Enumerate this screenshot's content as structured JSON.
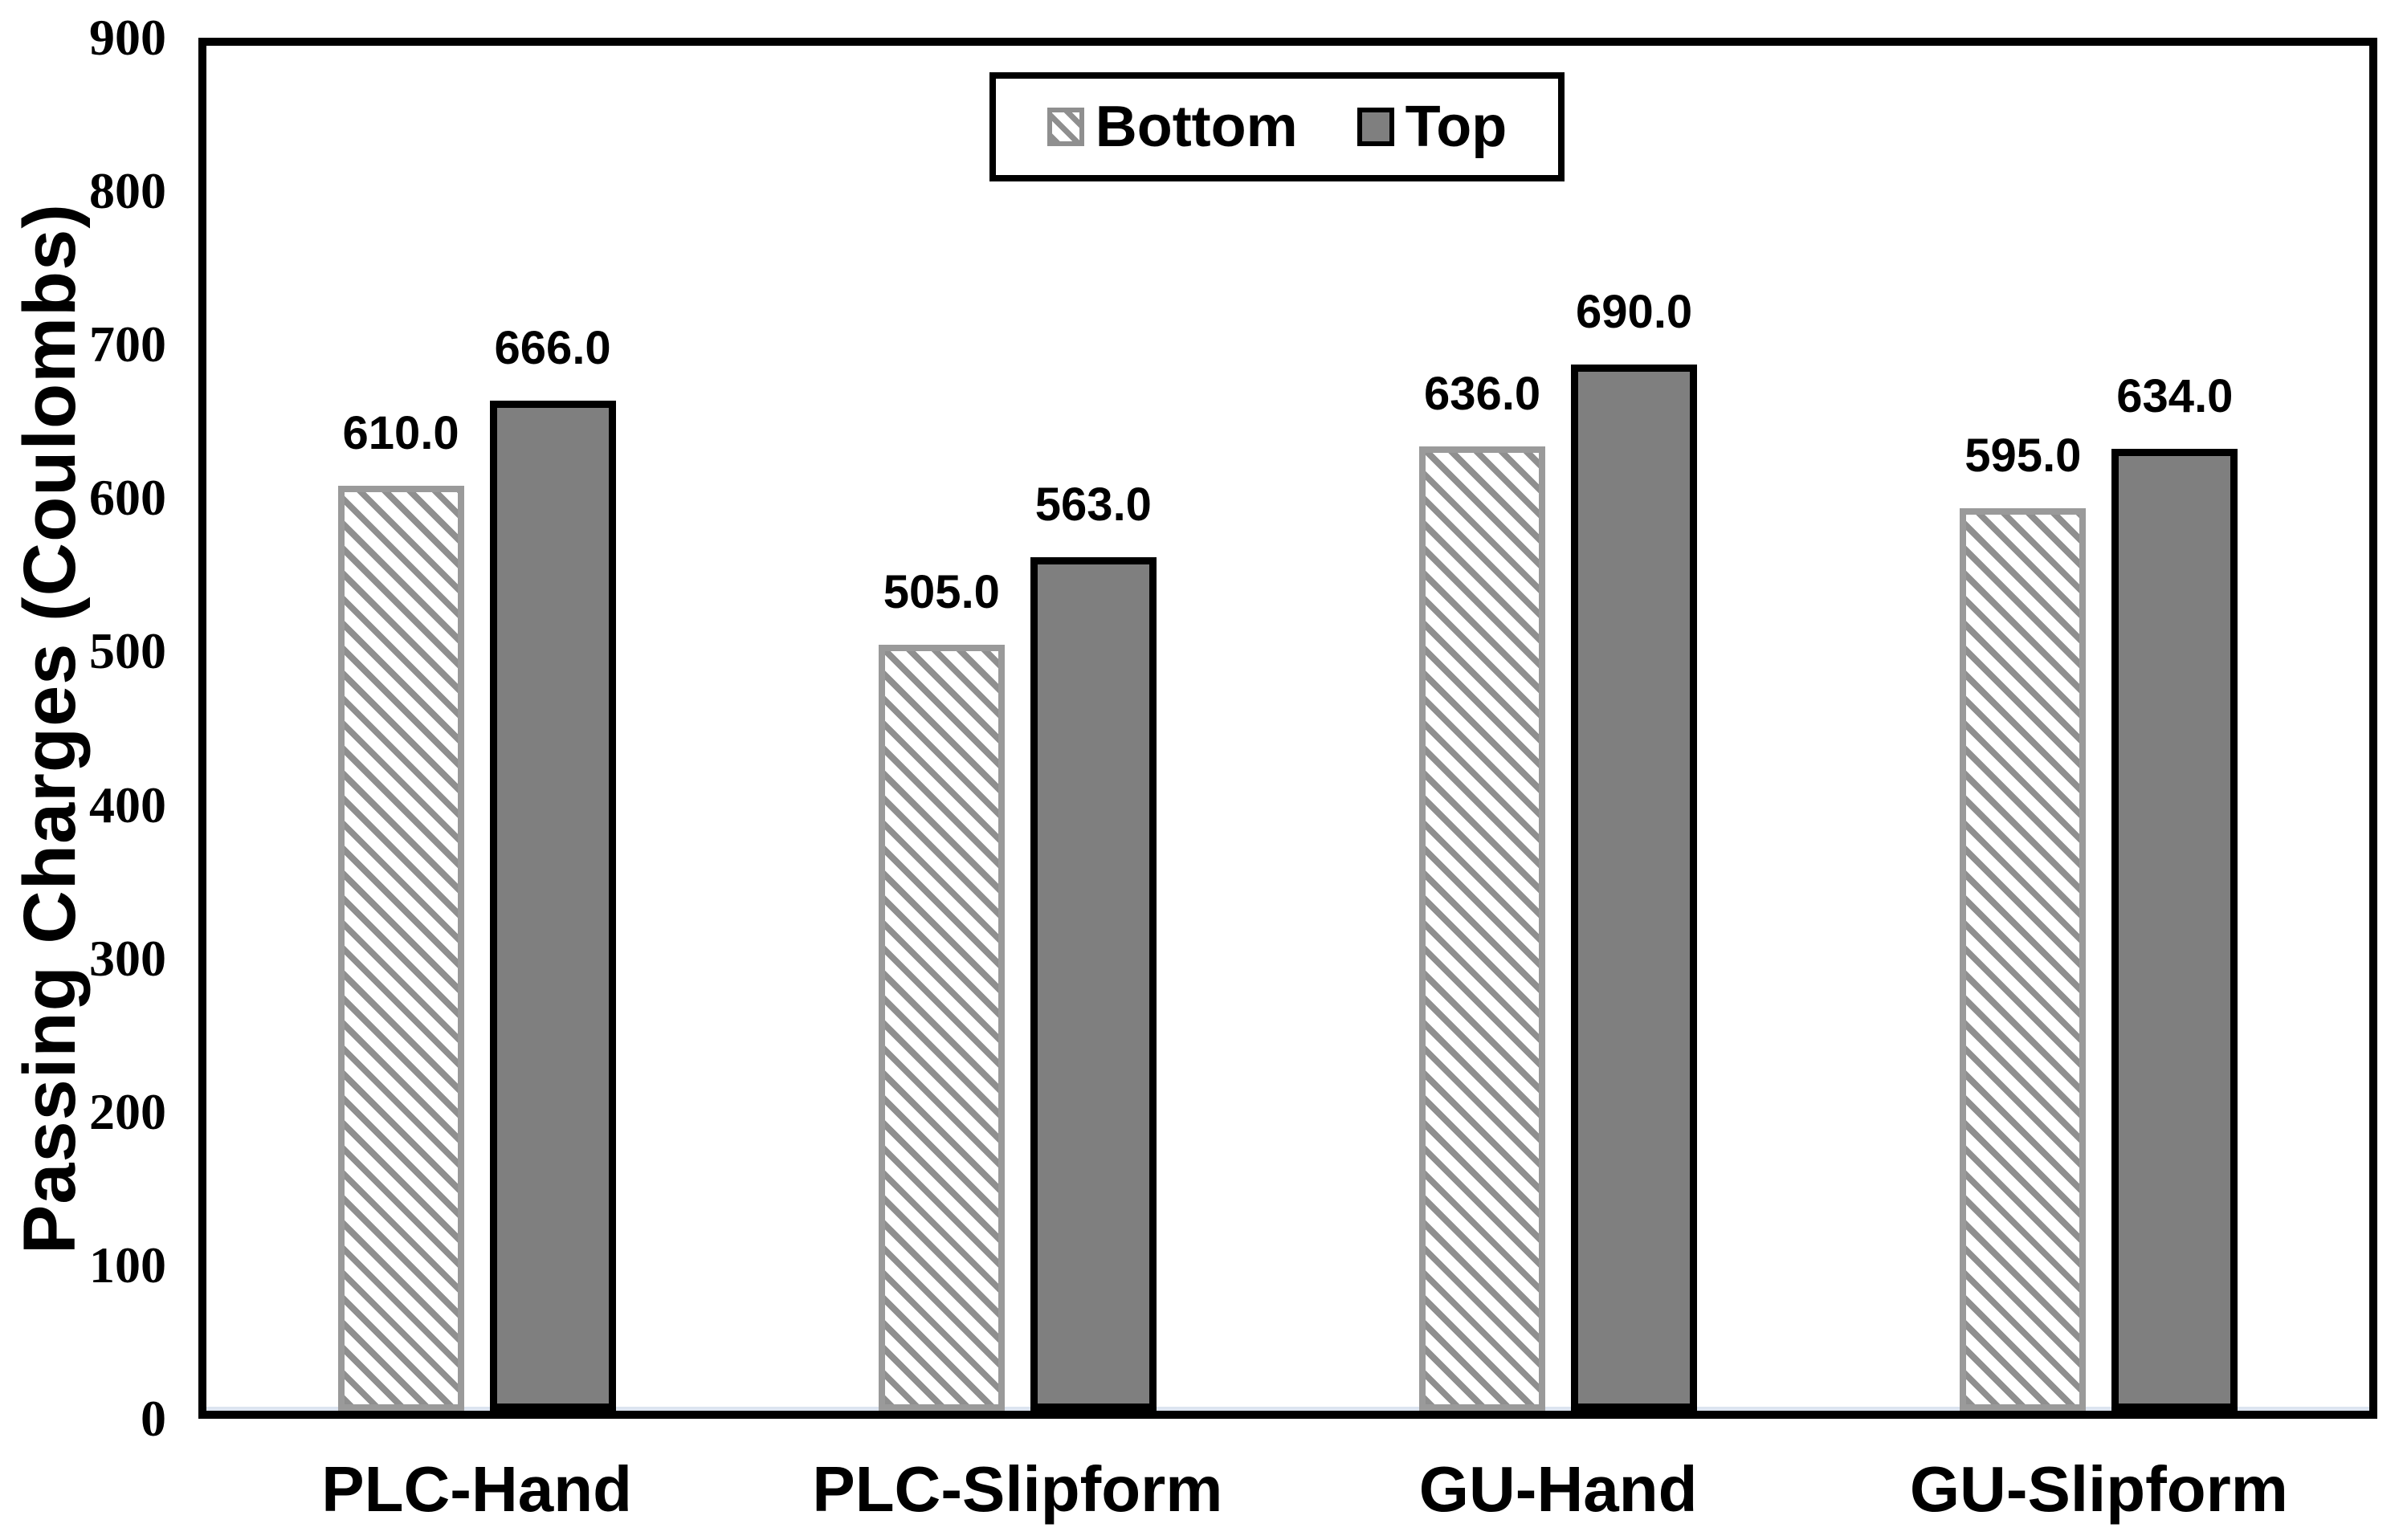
{
  "chart_data": {
    "type": "bar",
    "title": "",
    "categories": [
      "PLC-Hand",
      "PLC-Slipform",
      "GU-Hand",
      "GU-Slipform"
    ],
    "series": [
      {
        "name": "Bottom",
        "pattern": "diagonal-hatch",
        "values": [
          610.0,
          505.0,
          636.0,
          595.0
        ],
        "data_labels": [
          "610.0",
          "505.0",
          "636.0",
          "595.0"
        ]
      },
      {
        "name": "Top",
        "pattern": "solid",
        "values": [
          666.0,
          563.0,
          690.0,
          634.0
        ],
        "data_labels": [
          "666.0",
          "563.0",
          "690.0",
          "634.0"
        ]
      }
    ],
    "xlabel": "",
    "ylabel": "Passing Charges (Coulombs)",
    "ylim": [
      0,
      900
    ],
    "yticks": [
      0,
      100,
      200,
      300,
      400,
      500,
      600,
      700,
      800,
      900
    ],
    "grid": false,
    "legend": {
      "entries": [
        "Bottom",
        "Top"
      ],
      "position": "top-center-inside"
    },
    "colors": {
      "solid_fill": "#7F7F7F",
      "solid_border": "#000000",
      "hatch_stripe": "#8F8F8F",
      "hatch_background": "#FFFFFF",
      "hatch_border": "#9A9A9A",
      "text": "#000000",
      "axis_frame": "#000000"
    }
  }
}
